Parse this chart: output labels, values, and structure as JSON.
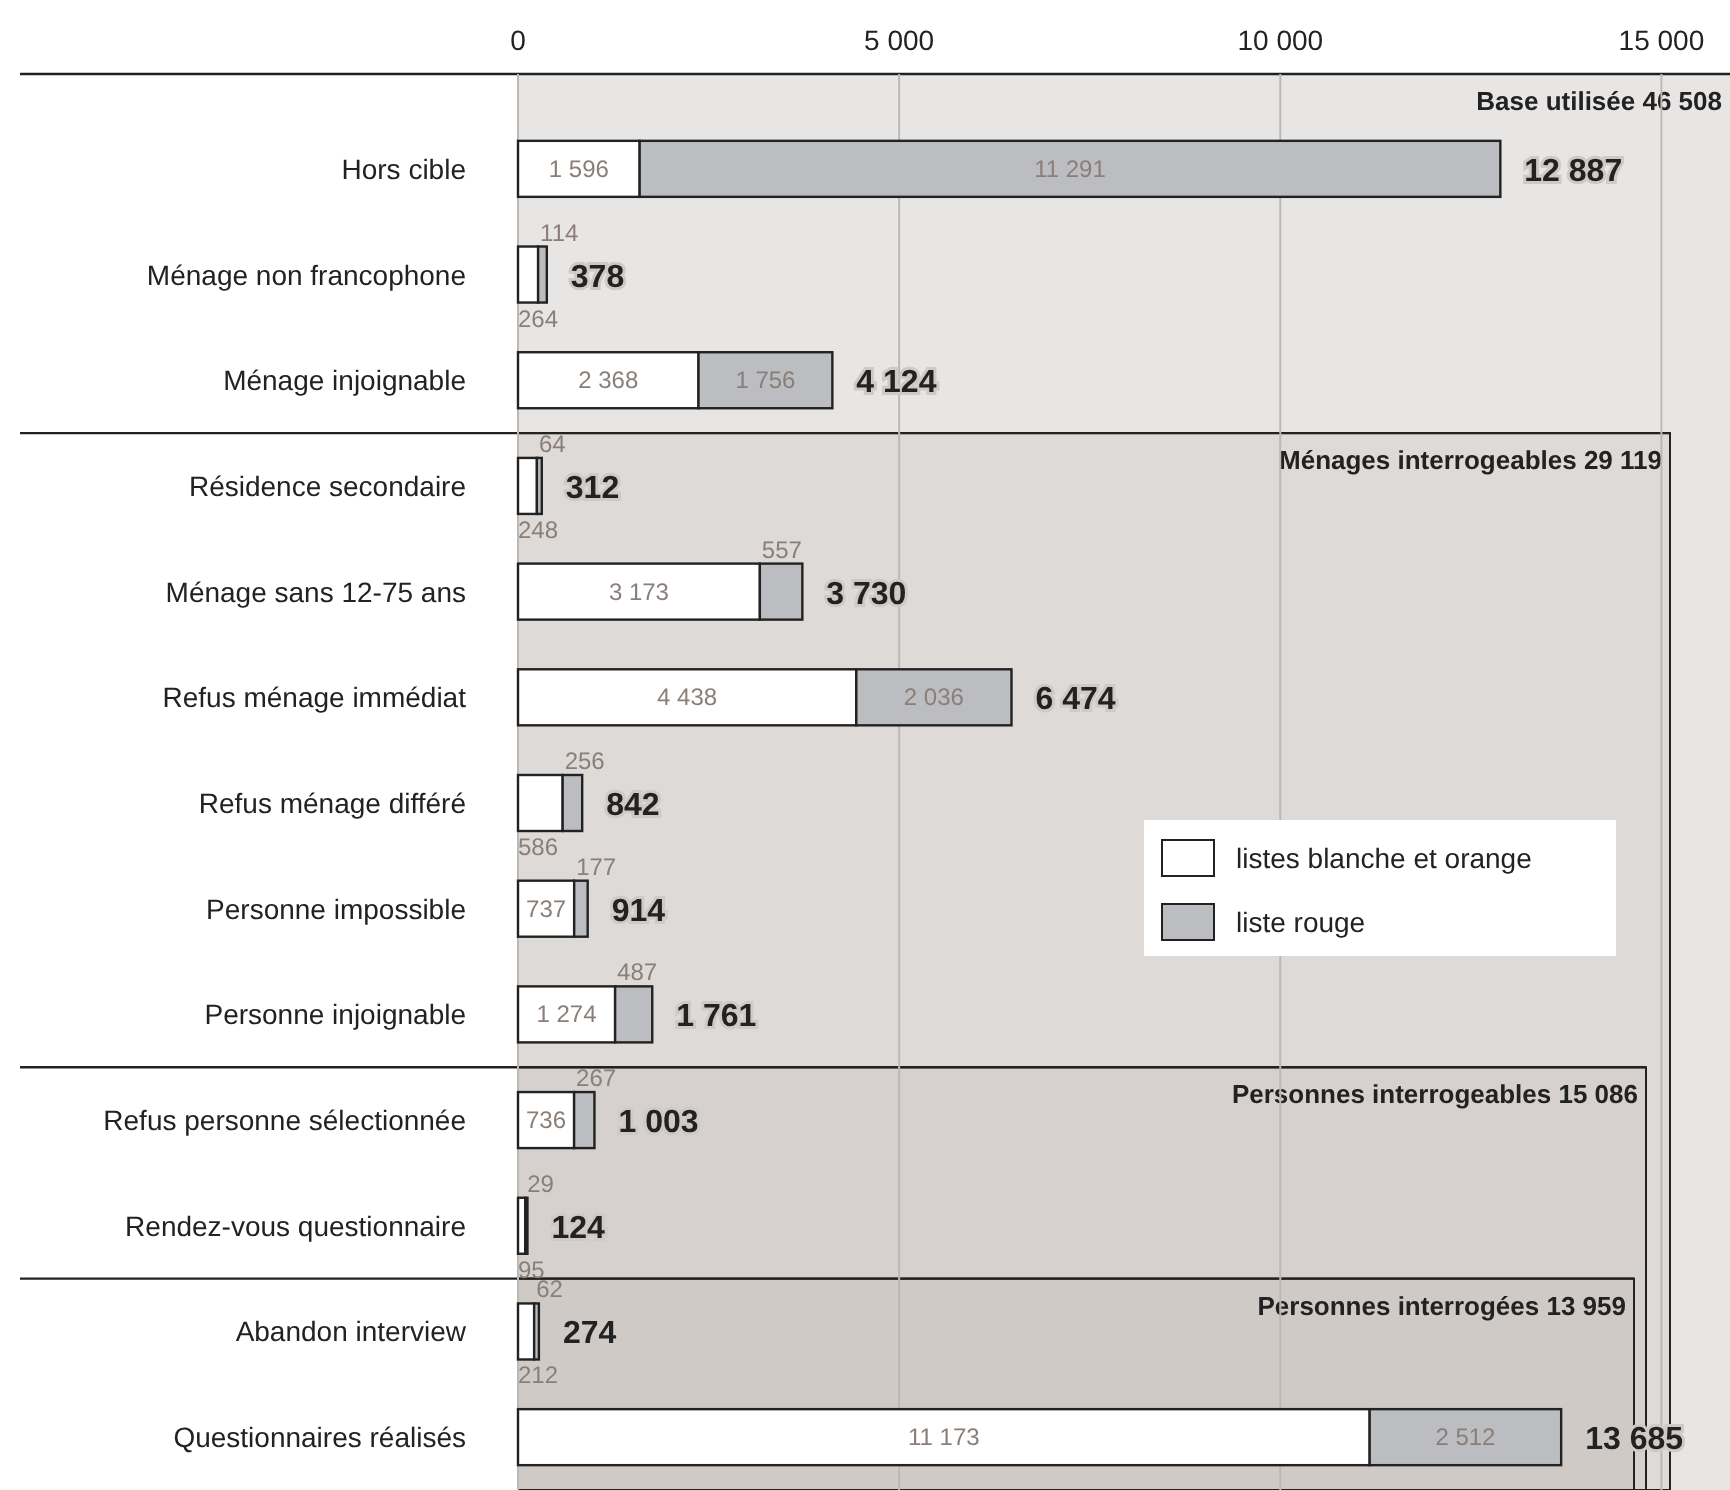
{
  "chart_data": {
    "type": "bar",
    "orientation": "horizontal",
    "stacked": true,
    "categories": [
      "Hors cible",
      "Ménage non francophone",
      "Ménage injoignable",
      "Résidence secondaire",
      "Ménage sans 12-75 ans",
      "Refus ménage immédiat",
      "Refus ménage différé",
      "Personne impossible",
      "Personne injoignable",
      "Refus personne sélectionnée",
      "Rendez-vous questionnaire",
      "Abandon interview",
      "Questionnaires réalisés"
    ],
    "series": [
      {
        "name": "listes blanche et orange",
        "color": "#ffffff",
        "values": [
          1596,
          264,
          2368,
          248,
          3173,
          4438,
          586,
          737,
          1274,
          736,
          95,
          212,
          11173
        ],
        "value_labels": [
          "1 596",
          "264",
          "2 368",
          "248",
          "3 173",
          "4 438",
          "586",
          "737",
          "1 274",
          "736",
          "95",
          "212",
          "11 173"
        ]
      },
      {
        "name": "liste rouge",
        "color": "#bcbdc1",
        "values": [
          11291,
          114,
          1756,
          64,
          557,
          2036,
          256,
          177,
          487,
          267,
          29,
          62,
          2512
        ],
        "value_labels": [
          "11 291",
          "114",
          "1 756",
          "64",
          "557",
          "2 036",
          "256",
          "177",
          "487",
          "267",
          "29",
          "62",
          "2 512"
        ]
      }
    ],
    "totals": [
      "12 887",
      "378",
      "4 124",
      "312",
      "3 730",
      "6 474",
      "842",
      "914",
      "1 761",
      "1 003",
      "124",
      "274",
      "13 685"
    ],
    "xlim": [
      0,
      15900
    ],
    "xticks": [
      0,
      {
        "value": 5000,
        "label": "5 000"
      },
      {
        "value": 10000,
        "label": "10 000"
      },
      {
        "value": 15000,
        "label": "15 000"
      }
    ],
    "grid": "x",
    "legend": "right",
    "annotations": [
      "Base utilisée 46 508",
      "Ménages interrogeables 29 119",
      "Personnes interrogeables 15 086",
      "Personnes interrogées 13 959"
    ]
  }
}
